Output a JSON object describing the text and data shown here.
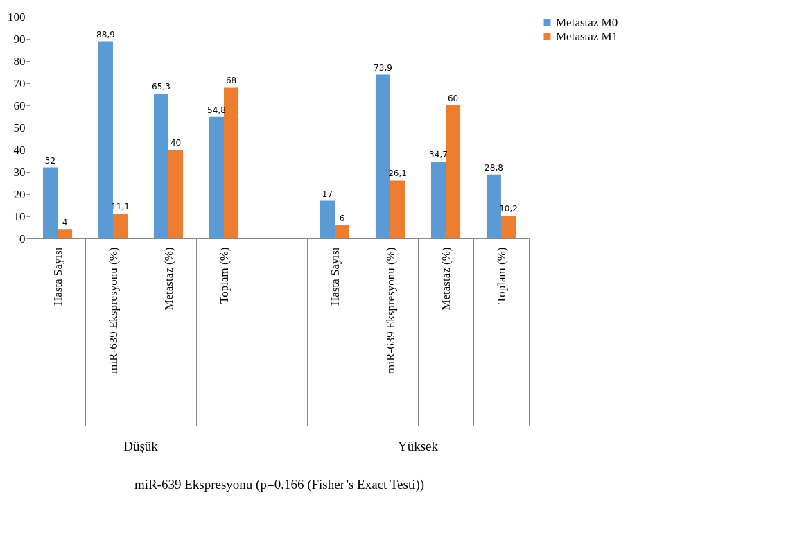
{
  "chart_data": {
    "type": "bar",
    "categories": [
      "Hasta Sayısı",
      "miR-639 Ekspresyonu (%)",
      "Metastaz (%)",
      "Toplam (%)",
      null,
      "Hasta Sayısı",
      "miR-639 Ekspresyonu (%)",
      "Metastaz (%)",
      "Toplam (%)"
    ],
    "annotations": [
      "Düşük",
      "Yüksek",
      "miR-639 Ekspresyonu (p=0.166 (Fisher’s Exact Testi))"
    ],
    "series": [
      {
        "name": "Metastaz M0",
        "color": "#5b9bd5",
        "values": [
          32,
          88.9,
          65.3,
          54.8,
          null,
          17,
          73.9,
          34.7,
          28.8
        ],
        "value_labels": [
          "32",
          "88,9",
          "65,3",
          "54,8",
          null,
          "17",
          "73,9",
          "34,7",
          "28,8"
        ]
      },
      {
        "name": "Metastaz M1",
        "color": "#ed7d31",
        "values": [
          4,
          11.1,
          40,
          68,
          null,
          6,
          26.1,
          60,
          10.2
        ],
        "value_labels": [
          "4",
          "11,1",
          "40",
          "68",
          null,
          "6",
          "26,1",
          "60",
          "10,2"
        ]
      }
    ],
    "ylim": [
      0,
      100
    ],
    "yticks": [
      0,
      10,
      20,
      30,
      40,
      50,
      60,
      70,
      80,
      90,
      100
    ],
    "grid": false,
    "legend": "right"
  }
}
